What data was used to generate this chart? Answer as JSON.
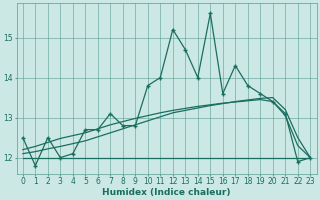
{
  "xlabel": "Humidex (Indice chaleur)",
  "bg_color": "#cce8e4",
  "grid_color": "#5a9e94",
  "line_color": "#1a6e60",
  "x_values": [
    0,
    1,
    2,
    3,
    4,
    5,
    6,
    7,
    8,
    9,
    10,
    11,
    12,
    13,
    14,
    15,
    16,
    17,
    18,
    19,
    20,
    21,
    22,
    23
  ],
  "y_main": [
    12.5,
    11.8,
    12.5,
    12.0,
    12.1,
    12.7,
    12.7,
    13.1,
    12.8,
    12.8,
    13.8,
    14.0,
    15.2,
    14.7,
    14.0,
    15.6,
    13.6,
    14.3,
    13.8,
    13.6,
    13.4,
    13.1,
    11.9,
    12.0
  ],
  "y_flat": [
    12.0,
    12.0,
    12.0,
    12.0,
    12.0,
    12.0,
    12.0,
    12.0,
    12.0,
    12.0,
    12.0,
    12.0,
    12.0,
    12.0,
    12.0,
    12.0,
    12.0,
    12.0,
    12.0,
    12.0,
    12.0,
    12.0,
    12.0,
    12.0
  ],
  "y_trend2": [
    12.1,
    12.15,
    12.22,
    12.28,
    12.35,
    12.42,
    12.52,
    12.62,
    12.72,
    12.82,
    12.92,
    13.02,
    13.12,
    13.18,
    13.24,
    13.3,
    13.35,
    13.4,
    13.44,
    13.48,
    13.5,
    13.2,
    12.5,
    12.0
  ],
  "y_trend3": [
    12.2,
    12.28,
    12.38,
    12.48,
    12.55,
    12.62,
    12.72,
    12.82,
    12.9,
    12.98,
    13.05,
    13.12,
    13.18,
    13.23,
    13.28,
    13.32,
    13.36,
    13.39,
    13.42,
    13.45,
    13.4,
    13.05,
    12.3,
    12.0
  ],
  "ylim_min": 11.6,
  "ylim_max": 15.85,
  "yticks": [
    12,
    13,
    14,
    15
  ],
  "xticks": [
    0,
    1,
    2,
    3,
    4,
    5,
    6,
    7,
    8,
    9,
    10,
    11,
    12,
    13,
    14,
    15,
    16,
    17,
    18,
    19,
    20,
    21,
    22,
    23
  ],
  "tick_fontsize": 5.5,
  "xlabel_fontsize": 6.5
}
